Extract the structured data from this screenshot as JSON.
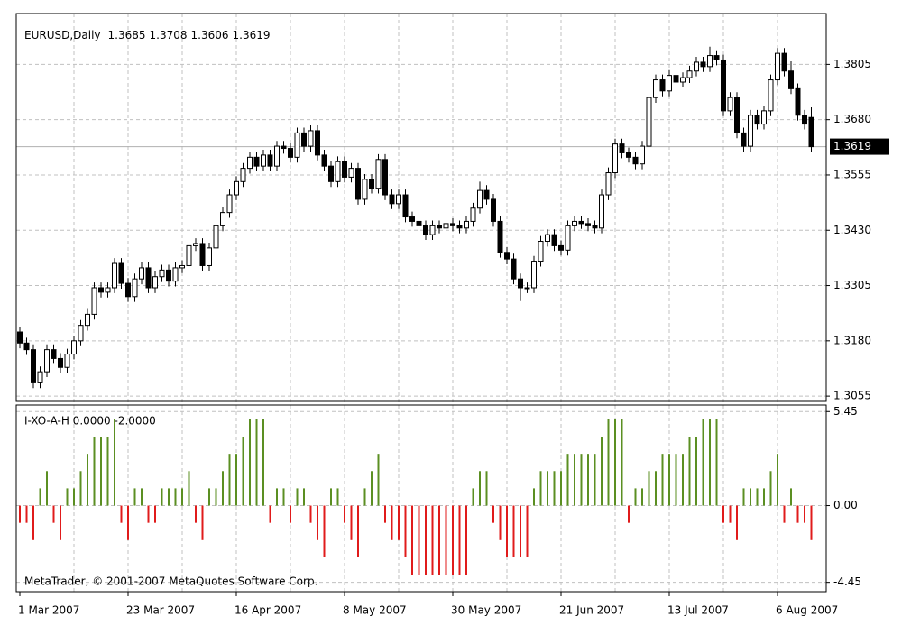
{
  "chart_data": [
    {
      "type": "candlestick",
      "symbol": "EURUSD,Daily",
      "up_color": "#ffffff",
      "down_color": "#000000",
      "line_color": "#000000",
      "grid": true,
      "categories": [
        "1 Mar 2007",
        null,
        null,
        null,
        null,
        null,
        null,
        null,
        null,
        null,
        null,
        null,
        null,
        null,
        null,
        null,
        "23 Mar 2007",
        null,
        null,
        null,
        null,
        null,
        null,
        null,
        null,
        null,
        null,
        null,
        null,
        null,
        null,
        null,
        "16 Apr 2007",
        null,
        null,
        null,
        null,
        null,
        null,
        null,
        null,
        null,
        null,
        null,
        null,
        null,
        null,
        null,
        "8 May 2007",
        null,
        null,
        null,
        null,
        null,
        null,
        null,
        null,
        null,
        null,
        null,
        null,
        null,
        null,
        null,
        "30 May 2007",
        null,
        null,
        null,
        null,
        null,
        null,
        null,
        null,
        null,
        null,
        null,
        null,
        null,
        null,
        null,
        "21 Jun 2007",
        null,
        null,
        null,
        null,
        null,
        null,
        null,
        null,
        null,
        null,
        null,
        null,
        null,
        null,
        null,
        "13 Jul 2007",
        null,
        null,
        null,
        null,
        null,
        null,
        null,
        null,
        null,
        null,
        null,
        null,
        null,
        null,
        null,
        "6 Aug 2007",
        null,
        null,
        null,
        null,
        null
      ],
      "ohlc": [
        [
          1.32,
          1.3212,
          1.3163,
          1.3175
        ],
        [
          1.3175,
          1.3187,
          1.3148,
          1.316
        ],
        [
          1.316,
          1.3172,
          1.3073,
          1.3085
        ],
        [
          1.3085,
          1.3122,
          1.3073,
          1.311
        ],
        [
          1.311,
          1.3172,
          1.3098,
          1.316
        ],
        [
          1.316,
          1.3172,
          1.3128,
          1.314
        ],
        [
          1.314,
          1.3152,
          1.3108,
          1.312
        ],
        [
          1.312,
          1.3162,
          1.3108,
          1.315
        ],
        [
          1.315,
          1.3192,
          1.3138,
          1.318
        ],
        [
          1.318,
          1.3227,
          1.3168,
          1.3215
        ],
        [
          1.3215,
          1.3252,
          1.3203,
          1.324
        ],
        [
          1.324,
          1.3312,
          1.3228,
          1.33
        ],
        [
          1.33,
          1.3312,
          1.3278,
          1.329
        ],
        [
          1.329,
          1.3312,
          1.3278,
          1.33
        ],
        [
          1.33,
          1.3367,
          1.3288,
          1.3355
        ],
        [
          1.3355,
          1.3367,
          1.3298,
          1.331
        ],
        [
          1.331,
          1.3322,
          1.3268,
          1.328
        ],
        [
          1.328,
          1.3332,
          1.3268,
          1.332
        ],
        [
          1.332,
          1.3357,
          1.3308,
          1.3345
        ],
        [
          1.3345,
          1.3357,
          1.3288,
          1.33
        ],
        [
          1.33,
          1.3337,
          1.3288,
          1.3325
        ],
        [
          1.3325,
          1.3352,
          1.3313,
          1.334
        ],
        [
          1.334,
          1.3352,
          1.3303,
          1.3315
        ],
        [
          1.3315,
          1.3357,
          1.3303,
          1.3345
        ],
        [
          1.3345,
          1.3362,
          1.3333,
          1.335
        ],
        [
          1.335,
          1.3407,
          1.3338,
          1.3395
        ],
        [
          1.3395,
          1.3412,
          1.3383,
          1.34
        ],
        [
          1.34,
          1.3412,
          1.3338,
          1.335
        ],
        [
          1.335,
          1.3402,
          1.3338,
          1.339
        ],
        [
          1.339,
          1.3452,
          1.3378,
          1.344
        ],
        [
          1.344,
          1.3482,
          1.3428,
          1.347
        ],
        [
          1.347,
          1.3522,
          1.3458,
          1.351
        ],
        [
          1.351,
          1.3552,
          1.3498,
          1.354
        ],
        [
          1.354,
          1.3582,
          1.3528,
          1.357
        ],
        [
          1.357,
          1.3607,
          1.3558,
          1.3595
        ],
        [
          1.3595,
          1.3607,
          1.3563,
          1.3575
        ],
        [
          1.3575,
          1.3612,
          1.3563,
          1.36
        ],
        [
          1.36,
          1.3612,
          1.3563,
          1.3575
        ],
        [
          1.3575,
          1.3632,
          1.3563,
          1.362
        ],
        [
          1.362,
          1.3632,
          1.3603,
          1.3615
        ],
        [
          1.3615,
          1.3627,
          1.3583,
          1.3595
        ],
        [
          1.3595,
          1.3662,
          1.3583,
          1.365
        ],
        [
          1.365,
          1.3662,
          1.3608,
          1.362
        ],
        [
          1.362,
          1.3667,
          1.3608,
          1.3655
        ],
        [
          1.3655,
          1.3667,
          1.3588,
          1.36
        ],
        [
          1.36,
          1.3612,
          1.3563,
          1.3575
        ],
        [
          1.3575,
          1.3587,
          1.3528,
          1.354
        ],
        [
          1.354,
          1.3597,
          1.3528,
          1.3585
        ],
        [
          1.3585,
          1.3597,
          1.3538,
          1.355
        ],
        [
          1.355,
          1.3582,
          1.3538,
          1.357
        ],
        [
          1.357,
          1.3582,
          1.3488,
          1.35
        ],
        [
          1.35,
          1.3557,
          1.3488,
          1.3545
        ],
        [
          1.3545,
          1.3557,
          1.3513,
          1.3525
        ],
        [
          1.3525,
          1.3602,
          1.3513,
          1.359
        ],
        [
          1.359,
          1.3602,
          1.3498,
          1.351
        ],
        [
          1.351,
          1.3522,
          1.3478,
          1.349
        ],
        [
          1.349,
          1.3522,
          1.3478,
          1.351
        ],
        [
          1.351,
          1.3522,
          1.3448,
          1.346
        ],
        [
          1.346,
          1.3472,
          1.3438,
          1.345
        ],
        [
          1.345,
          1.3462,
          1.3428,
          1.344
        ],
        [
          1.344,
          1.3452,
          1.3408,
          1.342
        ],
        [
          1.342,
          1.3452,
          1.3408,
          1.344
        ],
        [
          1.344,
          1.3452,
          1.3423,
          1.3435
        ],
        [
          1.3435,
          1.3457,
          1.3423,
          1.3445
        ],
        [
          1.3445,
          1.3457,
          1.3428,
          1.344
        ],
        [
          1.344,
          1.3452,
          1.3423,
          1.3435
        ],
        [
          1.3435,
          1.3462,
          1.3423,
          1.345
        ],
        [
          1.345,
          1.3492,
          1.3438,
          1.348
        ],
        [
          1.348,
          1.354,
          1.3468,
          1.352
        ],
        [
          1.352,
          1.3532,
          1.3488,
          1.35
        ],
        [
          1.35,
          1.3512,
          1.3438,
          1.345
        ],
        [
          1.345,
          1.3462,
          1.3368,
          1.338
        ],
        [
          1.338,
          1.3392,
          1.3353,
          1.3365
        ],
        [
          1.3365,
          1.3377,
          1.3308,
          1.332
        ],
        [
          1.332,
          1.3332,
          1.327,
          1.33
        ],
        [
          1.33,
          1.3312,
          1.3288,
          1.33
        ],
        [
          1.33,
          1.3372,
          1.3288,
          1.336
        ],
        [
          1.336,
          1.3417,
          1.3348,
          1.3405
        ],
        [
          1.3405,
          1.3432,
          1.3393,
          1.342
        ],
        [
          1.342,
          1.3432,
          1.3383,
          1.3395
        ],
        [
          1.3395,
          1.3407,
          1.3373,
          1.3385
        ],
        [
          1.3385,
          1.3452,
          1.3373,
          1.344
        ],
        [
          1.344,
          1.3462,
          1.3428,
          1.345
        ],
        [
          1.345,
          1.3462,
          1.3433,
          1.3445
        ],
        [
          1.3445,
          1.3457,
          1.3428,
          1.344
        ],
        [
          1.344,
          1.3452,
          1.3423,
          1.3435
        ],
        [
          1.3435,
          1.3522,
          1.3423,
          1.351
        ],
        [
          1.351,
          1.3572,
          1.3498,
          1.356
        ],
        [
          1.356,
          1.3637,
          1.3548,
          1.3625
        ],
        [
          1.3625,
          1.3637,
          1.3593,
          1.3605
        ],
        [
          1.3605,
          1.3617,
          1.3583,
          1.3595
        ],
        [
          1.3595,
          1.3607,
          1.3568,
          1.358
        ],
        [
          1.358,
          1.3632,
          1.3568,
          1.362
        ],
        [
          1.362,
          1.3742,
          1.3608,
          1.373
        ],
        [
          1.373,
          1.3782,
          1.3718,
          1.377
        ],
        [
          1.377,
          1.3782,
          1.3733,
          1.3745
        ],
        [
          1.3745,
          1.3792,
          1.3733,
          1.378
        ],
        [
          1.378,
          1.3792,
          1.3753,
          1.3765
        ],
        [
          1.3765,
          1.3787,
          1.3753,
          1.3775
        ],
        [
          1.3775,
          1.3802,
          1.3763,
          1.379
        ],
        [
          1.379,
          1.3822,
          1.3778,
          1.381
        ],
        [
          1.381,
          1.3822,
          1.3788,
          1.38
        ],
        [
          1.38,
          1.3845,
          1.3788,
          1.3825
        ],
        [
          1.3825,
          1.3837,
          1.3803,
          1.3815
        ],
        [
          1.3815,
          1.3827,
          1.3688,
          1.37
        ],
        [
          1.37,
          1.3742,
          1.3688,
          1.373
        ],
        [
          1.373,
          1.3742,
          1.3638,
          1.365
        ],
        [
          1.365,
          1.3662,
          1.3608,
          1.362
        ],
        [
          1.362,
          1.3702,
          1.3608,
          1.369
        ],
        [
          1.369,
          1.3702,
          1.3658,
          1.367
        ],
        [
          1.367,
          1.3712,
          1.3658,
          1.37
        ],
        [
          1.37,
          1.3782,
          1.3688,
          1.377
        ],
        [
          1.377,
          1.3842,
          1.3758,
          1.383
        ],
        [
          1.383,
          1.3842,
          1.3778,
          1.379
        ],
        [
          1.379,
          1.3812,
          1.3738,
          1.375
        ],
        [
          1.375,
          1.3762,
          1.3678,
          1.369
        ],
        [
          1.369,
          1.3702,
          1.3658,
          1.367
        ],
        [
          1.3685,
          1.3708,
          1.3606,
          1.3619
        ]
      ],
      "ylim": [
        1.3043,
        1.392
      ],
      "yticks": [
        1.3805,
        {
          "value": 1.368,
          "label": "1.3680"
        },
        1.3555,
        {
          "value": 1.343,
          "label": "1.3430"
        },
        1.3305,
        {
          "value": 1.318,
          "label": "1.3180"
        },
        1.3055
      ]
    },
    {
      "type": "bar",
      "title": "I-XO-A-H 0.0000 -2.0000",
      "note": "MetaTrader, © 2001-2007 MetaQuotes Software Corp.",
      "positive_color": "#5b8f22",
      "negative_color": "#e01b1b",
      "values": [
        -1,
        -1,
        -2,
        1,
        2,
        -1,
        -2,
        1,
        1,
        2,
        3,
        4,
        4,
        4,
        5,
        -1,
        -2,
        1,
        1,
        -1,
        -1,
        1,
        1,
        1,
        1,
        2,
        -1,
        -2,
        1,
        1,
        2,
        3,
        3,
        4,
        5,
        5,
        5,
        -1,
        1,
        1,
        -1,
        1,
        1,
        -1,
        -2,
        -3,
        1,
        1,
        -1,
        -2,
        -3,
        1,
        2,
        3,
        -1,
        -2,
        -2,
        -3,
        -4,
        -4,
        -4,
        -4,
        -4,
        -4,
        -4,
        -4,
        -4,
        1,
        2,
        2,
        -1,
        -2,
        -3,
        -3,
        -3,
        -3,
        1,
        2,
        2,
        2,
        2,
        3,
        3,
        3,
        3,
        3,
        4,
        5,
        5,
        5,
        -1,
        1,
        1,
        2,
        2,
        3,
        3,
        3,
        3,
        4,
        4,
        5,
        5,
        5,
        -1,
        -1,
        -2,
        1,
        1,
        1,
        1,
        2,
        3,
        -1,
        1,
        -1,
        -1,
        -2
      ],
      "ylim": [
        -4.99,
        5.83
      ],
      "yticks": [
        5.45,
        {
          "value": 0,
          "label": "0.00"
        },
        -4.45
      ]
    }
  ]
}
